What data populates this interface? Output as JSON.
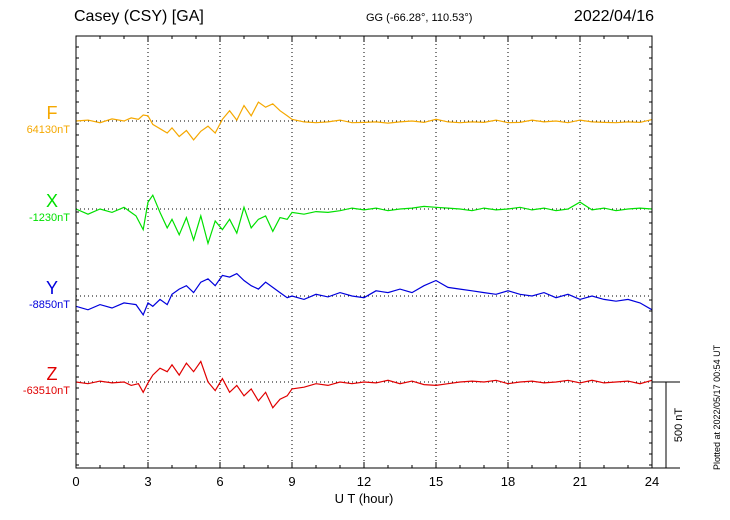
{
  "header": {
    "station": "Casey (CSY)  [GA]",
    "coords": "GG (-66.28°, 110.53°)",
    "date": "2022/04/16"
  },
  "footer": {
    "plotted": "Plotted at 2022/05/17 00:54 UT"
  },
  "chart_data": {
    "type": "line",
    "title": "Casey (CSY)  [GA]",
    "xlabel": "U T (hour)",
    "xlim": [
      0,
      24
    ],
    "x_ticks": [
      "0",
      "3",
      "6",
      "9",
      "12",
      "15",
      "18",
      "21",
      "24"
    ],
    "scale_bar": {
      "label": "500 nT",
      "value_nT": 500
    },
    "grid": "dotted verticals every 3 hours, dotted baseline per component",
    "series": [
      {
        "name": "F",
        "baseline": "64130nT",
        "color": "#f5a800",
        "x": [
          0,
          0.5,
          1,
          1.5,
          2,
          2.3,
          2.6,
          2.8,
          3,
          3.2,
          3.5,
          3.8,
          4,
          4.3,
          4.6,
          4.9,
          5.2,
          5.5,
          5.8,
          6.1,
          6.4,
          6.7,
          7,
          7.3,
          7.6,
          7.9,
          8.2,
          8.5,
          8.8,
          9,
          9.5,
          10,
          10.5,
          11,
          11.5,
          12,
          12.5,
          13,
          13.5,
          14,
          14.5,
          15,
          15.5,
          16,
          16.5,
          17,
          17.5,
          18,
          18.5,
          19,
          19.5,
          20,
          20.5,
          21,
          21.5,
          22,
          22.5,
          23,
          23.5,
          24
        ],
        "y": [
          0,
          5,
          -10,
          12,
          0,
          18,
          10,
          35,
          30,
          -20,
          -45,
          -70,
          -40,
          -90,
          -55,
          -110,
          -60,
          -30,
          -70,
          10,
          60,
          5,
          90,
          30,
          110,
          80,
          100,
          60,
          30,
          10,
          -5,
          -10,
          -5,
          5,
          -10,
          -8,
          -5,
          -12,
          -5,
          0,
          -8,
          10,
          -5,
          -10,
          -5,
          -8,
          5,
          -10,
          -8,
          5,
          -5,
          0,
          -10,
          5,
          -5,
          -8,
          -10,
          -5,
          -8,
          8
        ]
      },
      {
        "name": "X",
        "baseline": "-1230nT",
        "color": "#00e000",
        "x": [
          0,
          0.5,
          1,
          1.5,
          2,
          2.5,
          2.8,
          3,
          3.2,
          3.5,
          3.8,
          4,
          4.3,
          4.6,
          4.9,
          5.2,
          5.5,
          5.8,
          6.1,
          6.4,
          6.7,
          7,
          7.3,
          7.6,
          7.9,
          8.2,
          8.5,
          8.8,
          9,
          9.5,
          10,
          10.5,
          11,
          11.5,
          12,
          12.5,
          13,
          13.5,
          14,
          14.5,
          15,
          15.5,
          16,
          16.5,
          17,
          17.5,
          18,
          18.5,
          19,
          19.5,
          20,
          20.5,
          21,
          21.5,
          22,
          22.5,
          23,
          23.5,
          24
        ],
        "y": [
          0,
          -30,
          0,
          -20,
          10,
          -40,
          -120,
          40,
          80,
          -20,
          -110,
          -60,
          -150,
          -50,
          -180,
          -40,
          -200,
          -70,
          -120,
          -60,
          -140,
          10,
          -110,
          -60,
          -40,
          -130,
          -50,
          -60,
          -20,
          -30,
          -15,
          -20,
          -10,
          5,
          -5,
          5,
          -10,
          0,
          5,
          15,
          10,
          5,
          0,
          -10,
          5,
          -5,
          0,
          10,
          -5,
          5,
          -10,
          0,
          40,
          -5,
          5,
          -10,
          0,
          5,
          0
        ]
      },
      {
        "name": "Y",
        "baseline": "-8850nT",
        "color": "#0000dd",
        "x": [
          0,
          0.5,
          1,
          1.5,
          2,
          2.5,
          2.8,
          3,
          3.2,
          3.5,
          3.8,
          4,
          4.3,
          4.6,
          4.9,
          5.2,
          5.5,
          5.8,
          6.1,
          6.4,
          6.7,
          7,
          7.3,
          7.6,
          7.9,
          8.2,
          8.5,
          8.8,
          9,
          9.5,
          10,
          10.5,
          11,
          11.5,
          12,
          12.5,
          13,
          13.5,
          14,
          14.5,
          15,
          15.5,
          16,
          16.5,
          17,
          17.5,
          18,
          18.5,
          19,
          19.5,
          20,
          20.5,
          21,
          21.5,
          22,
          22.5,
          23,
          23.5,
          24
        ],
        "y": [
          -60,
          -80,
          -50,
          -70,
          -40,
          -50,
          -110,
          -40,
          -60,
          -20,
          -50,
          10,
          40,
          60,
          20,
          80,
          100,
          60,
          120,
          110,
          130,
          90,
          60,
          40,
          80,
          50,
          20,
          -10,
          0,
          -20,
          10,
          -5,
          20,
          0,
          -10,
          30,
          20,
          40,
          20,
          60,
          90,
          50,
          40,
          30,
          20,
          10,
          30,
          10,
          0,
          20,
          -10,
          10,
          -20,
          0,
          -20,
          -30,
          -20,
          -40,
          -80
        ]
      },
      {
        "name": "Z",
        "baseline": "-63510nT",
        "color": "#e00000",
        "x": [
          0,
          0.5,
          1,
          1.5,
          2,
          2.3,
          2.6,
          2.8,
          3,
          3.2,
          3.5,
          3.8,
          4,
          4.3,
          4.6,
          4.9,
          5.2,
          5.5,
          5.8,
          6.1,
          6.4,
          6.7,
          7,
          7.3,
          7.6,
          7.9,
          8.2,
          8.5,
          8.8,
          9,
          9.5,
          10,
          10.5,
          11,
          11.5,
          12,
          12.5,
          13,
          13.5,
          14,
          14.5,
          15,
          15.5,
          16,
          16.5,
          17,
          17.5,
          18,
          18.5,
          19,
          19.5,
          20,
          20.5,
          21,
          21.5,
          22,
          22.5,
          23,
          23.5,
          24
        ],
        "y": [
          0,
          -10,
          5,
          -5,
          0,
          -20,
          -10,
          -60,
          -5,
          40,
          80,
          60,
          100,
          40,
          110,
          60,
          120,
          0,
          -50,
          20,
          -60,
          -20,
          -80,
          -40,
          -110,
          -60,
          -150,
          -100,
          -80,
          -40,
          -30,
          -10,
          -20,
          0,
          -10,
          0,
          -5,
          10,
          -10,
          5,
          -15,
          -20,
          -10,
          0,
          5,
          0,
          10,
          -10,
          0,
          5,
          -5,
          0,
          10,
          -5,
          10,
          -5,
          0,
          5,
          -10,
          10
        ]
      }
    ]
  }
}
